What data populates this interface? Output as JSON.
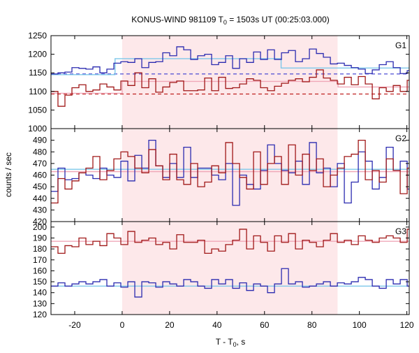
{
  "title": {
    "main": "KONUS-WIND 981109 T",
    "sub": "0",
    "rest": " = 1503s UT (00:25:03.000)"
  },
  "xlabel": {
    "main": "T - T",
    "sub": "0",
    "rest": ", s"
  },
  "ylabel": "counts / sec",
  "chart_data": {
    "type": "line",
    "style": "step",
    "shared_x": {
      "xlim": [
        -30,
        121
      ],
      "ticks": [
        -20,
        0,
        20,
        40,
        60,
        80,
        100,
        120
      ],
      "tick_labels": [
        "-20",
        "0",
        "20",
        "40",
        "60",
        "80",
        "100",
        "120"
      ]
    },
    "highlight_interval": {
      "x0": 0,
      "x1": 90.8,
      "color": "#fde8ea"
    },
    "colors": {
      "blue": "#2b2bb0",
      "red": "#a01818",
      "blue_fit": "#7ec8ea",
      "red_fit": "#f0a8b8",
      "blue_bg": "#3a3ad0",
      "red_bg": "#c02020"
    },
    "panels": [
      {
        "label": "G1",
        "ylim": [
          1000,
          1250
        ],
        "yticks": [
          1000,
          1050,
          1100,
          1150,
          1200,
          1250
        ],
        "series": [
          {
            "color": "blue",
            "x0": -30,
            "dx": 2.944,
            "values": [
              1147,
              1150,
              1152,
              1164,
              1162,
              1160,
              1166,
              1150,
              1160,
              1176,
              1180,
              1178,
              1188,
              1164,
              1178,
              1180,
              1204,
              1196,
              1220,
              1212,
              1186,
              1196,
              1200,
              1172,
              1178,
              1196,
              1162,
              1188,
              1178,
              1206,
              1186,
              1212,
              1186,
              1204,
              1210,
              1180,
              1188,
              1214,
              1202,
              1192,
              1174,
              1176,
              1170,
              1164,
              1160,
              1148,
              1158,
              1172,
              1180,
              1164,
              1148,
              1156,
              1172
            ]
          },
          {
            "color": "red",
            "x0": -30,
            "dx": 2.944,
            "values": [
              1100,
              1060,
              1090,
              1110,
              1118,
              1100,
              1104,
              1120,
              1112,
              1104,
              1128,
              1116,
              1150,
              1110,
              1134,
              1098,
              1112,
              1124,
              1128,
              1102,
              1102,
              1104,
              1136,
              1102,
              1138,
              1108,
              1110,
              1120,
              1134,
              1130,
              1110,
              1102,
              1114,
              1122,
              1130,
              1134,
              1126,
              1138,
              1158,
              1136,
              1130,
              1120,
              1138,
              1118,
              1140,
              1120,
              1080,
              1110,
              1100,
              1116,
              1100,
              1130,
              1120
            ]
          }
        ],
        "backgrounds": [
          {
            "color": "blue_bg",
            "dashed": true,
            "y": 1147
          },
          {
            "color": "red_bg",
            "dashed": true,
            "y": 1093
          }
        ],
        "fits": [
          {
            "color": "blue_fit",
            "segments": [
              [
                -30,
                -3,
                1145
              ],
              [
                -3,
                67,
                1188
              ],
              [
                67,
                121,
                1163
              ]
            ]
          },
          {
            "color": "red_fit",
            "segments": [
              [
                -30,
                0,
                1095
              ],
              [
                0,
                91,
                1127
              ],
              [
                91,
                121,
                1112
              ]
            ]
          }
        ]
      },
      {
        "label": "G2",
        "ylim": [
          420,
          500
        ],
        "yticks": [
          420,
          430,
          440,
          450,
          460,
          470,
          480,
          490
        ],
        "series": [
          {
            "color": "blue",
            "x0": -30,
            "dx": 2.944,
            "values": [
              446,
              466,
              456,
              457,
              462,
              460,
              457,
              466,
              460,
              458,
              472,
              455,
              477,
              466,
              490,
              468,
              458,
              470,
              458,
              484,
              458,
              466,
              466,
              460,
              456,
              470,
              434,
              460,
              452,
              448,
              464,
              486,
              470,
              464,
              462,
              472,
              452,
              488,
              462,
              466,
              450,
              470,
              436,
              454,
              480,
              472,
              448,
              458,
              484,
              464,
              472,
              448,
              470,
              486
            ]
          },
          {
            "color": "red",
            "x0": -30,
            "dx": 2.944,
            "values": [
              436,
              457,
              448,
              455,
              462,
              466,
              476,
              456,
              464,
              474,
              480,
              476,
              466,
              462,
              482,
              468,
              456,
              478,
              456,
              452,
              470,
              450,
              454,
              468,
              462,
              488,
              470,
              458,
              448,
              480,
              452,
              470,
              476,
              452,
              486,
              460,
              478,
              464,
              474,
              450,
              460,
              466,
              476,
              478,
              490,
              456,
              464,
              454,
              474,
              464,
              444,
              466,
              452,
              458
            ]
          }
        ],
        "fits": [
          {
            "color": "blue_fit",
            "segments": [
              [
                -30,
                121,
                465
              ]
            ]
          },
          {
            "color": "red_fit",
            "segments": [
              [
                -30,
                121,
                463
              ]
            ]
          }
        ]
      },
      {
        "label": "G3",
        "ylim": [
          120,
          205
        ],
        "yticks": [
          120,
          130,
          140,
          150,
          160,
          170,
          180,
          190,
          200
        ],
        "series": [
          {
            "color": "red",
            "x0": -30,
            "dx": 2.944,
            "values": [
              182,
              176,
              183,
              182,
              190,
              184,
              187,
              183,
              194,
              190,
              184,
              196,
              186,
              188,
              190,
              184,
              186,
              180,
              193,
              186,
              186,
              188,
              176,
              180,
              178,
              184,
              188,
              198,
              180,
              192,
              186,
              178,
              192,
              186,
              194,
              180,
              188,
              186,
              182,
              188,
              194,
              186,
              188,
              184,
              192,
              188,
              186,
              190,
              192,
              190,
              186,
              198,
              188
            ]
          },
          {
            "color": "blue",
            "x0": -30,
            "dx": 2.944,
            "values": [
              146,
              149,
              146,
              148,
              150,
              148,
              150,
              152,
              146,
              149,
              145,
              150,
              136,
              150,
              149,
              145,
              150,
              148,
              146,
              152,
              150,
              146,
              144,
              152,
              148,
              152,
              144,
              149,
              142,
              148,
              146,
              140,
              148,
              162,
              148,
              150,
              145,
              146,
              148,
              150,
              146,
              149,
              148,
              150,
              154,
              152,
              146,
              144,
              152,
              148,
              152,
              146,
              148
            ]
          }
        ],
        "fits": [
          {
            "color": "red_fit",
            "segments": [
              [
                -30,
                121,
                187
              ]
            ]
          },
          {
            "color": "blue_fit",
            "segments": [
              [
                -30,
                121,
                146
              ]
            ]
          }
        ]
      }
    ]
  }
}
